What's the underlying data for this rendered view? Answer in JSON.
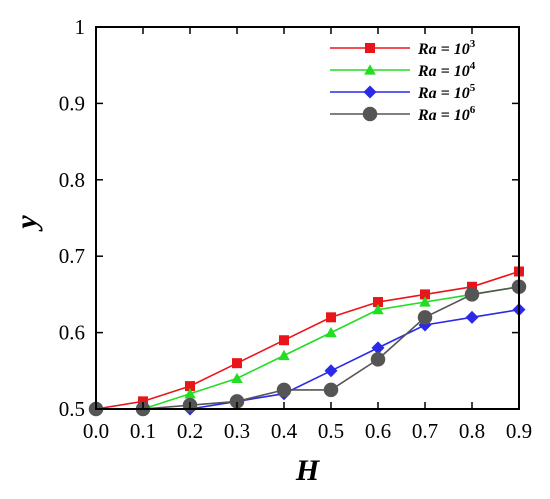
{
  "chart_data": {
    "type": "line",
    "xlabel": "H",
    "ylabel": "y",
    "xlim": [
      0,
      0.9
    ],
    "ylim": [
      0.5,
      1.0
    ],
    "x_ticks": [
      "0.0",
      "0.1",
      "0.2",
      "0.3",
      "0.4",
      "0.5",
      "0.6",
      "0.7",
      "0.8",
      "0.9"
    ],
    "y_ticks": [
      "0.5",
      "0.6",
      "0.7",
      "0.8",
      "0.9",
      "1"
    ],
    "legend_position": "top-right",
    "grid": false,
    "series": [
      {
        "name": "Ra = 10^3",
        "label_base": "Ra = 10",
        "label_exp": "3",
        "color": "#e8161a",
        "marker": "square",
        "x": [
          0.0,
          0.1,
          0.2,
          0.3,
          0.4,
          0.5,
          0.6,
          0.7,
          0.8,
          0.9
        ],
        "values": [
          0.5,
          0.51,
          0.53,
          0.56,
          0.59,
          0.62,
          0.64,
          0.65,
          0.66,
          0.68
        ]
      },
      {
        "name": "Ra = 10^4",
        "label_base": "Ra = 10",
        "label_exp": "4",
        "color": "#22dd22",
        "marker": "triangle",
        "x": [
          0.0,
          0.1,
          0.2,
          0.3,
          0.4,
          0.5,
          0.6,
          0.7,
          0.8,
          0.9
        ],
        "values": [
          0.5,
          0.5,
          0.52,
          0.54,
          0.57,
          0.6,
          0.63,
          0.64,
          0.65,
          0.66
        ]
      },
      {
        "name": "Ra = 10^5",
        "label_base": "Ra = 10",
        "label_exp": "5",
        "color": "#2a2ae8",
        "marker": "diamond",
        "x": [
          0.0,
          0.1,
          0.2,
          0.3,
          0.4,
          0.5,
          0.6,
          0.7,
          0.8,
          0.9
        ],
        "values": [
          0.5,
          0.5,
          0.5,
          0.51,
          0.52,
          0.55,
          0.58,
          0.61,
          0.62,
          0.63
        ]
      },
      {
        "name": "Ra = 10^6",
        "label_base": "Ra = 10",
        "label_exp": "6",
        "color": "#555555",
        "marker": "circle",
        "x": [
          0.0,
          0.1,
          0.2,
          0.3,
          0.4,
          0.5,
          0.6,
          0.7,
          0.8,
          0.9
        ],
        "values": [
          0.5,
          0.5,
          0.505,
          0.51,
          0.525,
          0.525,
          0.565,
          0.62,
          0.65,
          0.66
        ]
      }
    ]
  }
}
